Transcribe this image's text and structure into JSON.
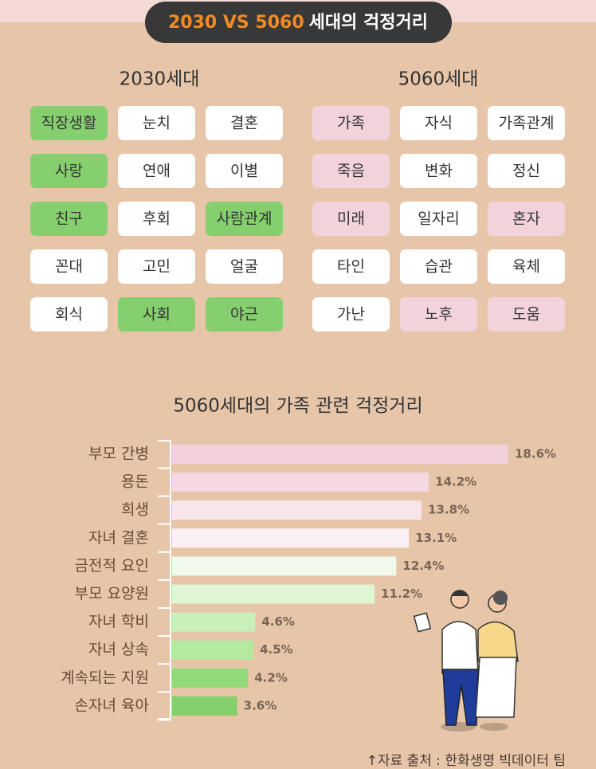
{
  "header": {
    "title_highlight": "2030 VS 5060",
    "title_rest": "세대의 걱정거리"
  },
  "panels": [
    {
      "title": "2030세대",
      "tags": [
        {
          "label": "직장생활",
          "color": "#86cf6e"
        },
        {
          "label": "눈치",
          "color": "#ffffff"
        },
        {
          "label": "결혼",
          "color": "#ffffff"
        },
        {
          "label": "사랑",
          "color": "#86cf6e"
        },
        {
          "label": "연애",
          "color": "#ffffff"
        },
        {
          "label": "이별",
          "color": "#ffffff"
        },
        {
          "label": "친구",
          "color": "#86cf6e"
        },
        {
          "label": "후회",
          "color": "#ffffff"
        },
        {
          "label": "사람관계",
          "color": "#86cf6e"
        },
        {
          "label": "꼰대",
          "color": "#ffffff"
        },
        {
          "label": "고민",
          "color": "#ffffff"
        },
        {
          "label": "얼굴",
          "color": "#ffffff"
        },
        {
          "label": "회식",
          "color": "#ffffff"
        },
        {
          "label": "사회",
          "color": "#86cf6e"
        },
        {
          "label": "야근",
          "color": "#86cf6e"
        }
      ]
    },
    {
      "title": "5060세대",
      "tags": [
        {
          "label": "가족",
          "color": "#f2d3dc"
        },
        {
          "label": "자식",
          "color": "#ffffff"
        },
        {
          "label": "가족관계",
          "color": "#ffffff"
        },
        {
          "label": "죽음",
          "color": "#f2d3dc"
        },
        {
          "label": "변화",
          "color": "#ffffff"
        },
        {
          "label": "정신",
          "color": "#ffffff"
        },
        {
          "label": "미래",
          "color": "#f2d3dc"
        },
        {
          "label": "일자리",
          "color": "#ffffff"
        },
        {
          "label": "혼자",
          "color": "#f2d3dc"
        },
        {
          "label": "타인",
          "color": "#ffffff"
        },
        {
          "label": "습관",
          "color": "#ffffff"
        },
        {
          "label": "육체",
          "color": "#ffffff"
        },
        {
          "label": "가난",
          "color": "#ffffff"
        },
        {
          "label": "노후",
          "color": "#f2d3dc"
        },
        {
          "label": "도움",
          "color": "#f2d3dc"
        }
      ]
    }
  ],
  "chart_data": {
    "type": "bar",
    "orientation": "horizontal",
    "title": "5060세대의 가족 관련 걱정거리",
    "categories": [
      "부모 간병",
      "용돈",
      "희생",
      "자녀 결혼",
      "금전적 요인",
      "부모 요양원",
      "자녀 학비",
      "자녀 상속",
      "계속되는 지원",
      "손자녀 육아"
    ],
    "values": [
      18.6,
      14.2,
      13.8,
      13.1,
      12.4,
      11.2,
      4.6,
      4.5,
      4.2,
      3.6
    ],
    "value_labels": [
      "18.6%",
      "14.2%",
      "13.8%",
      "13.1%",
      "12.4%",
      "11.2%",
      "4.6%",
      "4.5%",
      "4.2%",
      "3.6%"
    ],
    "colors": [
      "#f2d0db",
      "#f5d8e2",
      "#f8e4eb",
      "#fbf0f3",
      "#f1f8ec",
      "#dff6d5",
      "#c8f0b8",
      "#b4eaa0",
      "#92d97a",
      "#84cf6c"
    ]
  },
  "source": "↑자료 출처 : 한화생명 빅데이터 팀"
}
